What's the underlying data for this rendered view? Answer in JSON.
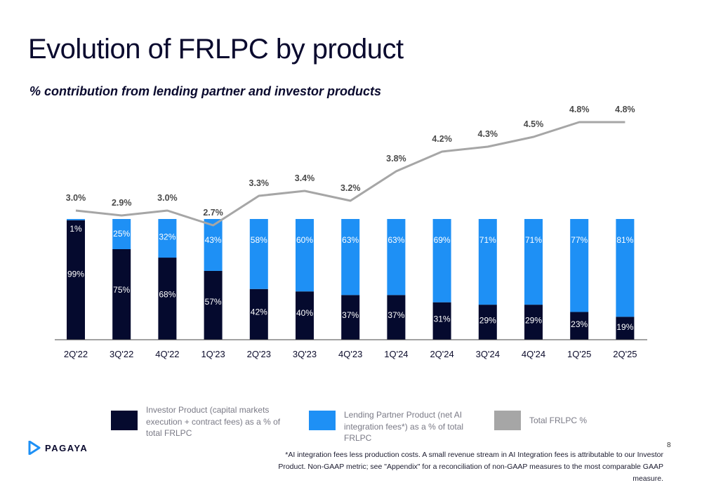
{
  "title": "Evolution of FRLPC by product",
  "subtitle": "% contribution from lending partner and investor products",
  "chart_data": {
    "type": "bar",
    "stacked": true,
    "categories": [
      "2Q'22",
      "3Q'22",
      "4Q'22",
      "1Q'23",
      "2Q'23",
      "3Q'23",
      "4Q'23",
      "1Q'24",
      "2Q'24",
      "3Q'24",
      "4Q'24",
      "1Q'25",
      "2Q'25"
    ],
    "series": [
      {
        "name": "Investor Product (capital markets execution + contract fees) as a % of total FRLPC",
        "color": "#050a2e",
        "values": [
          99,
          75,
          68,
          57,
          42,
          40,
          37,
          37,
          31,
          29,
          29,
          23,
          19
        ],
        "labels": [
          "99%",
          "75%",
          "68%",
          "57%",
          "42%",
          "40%",
          "37%",
          "37%",
          "31%",
          "29%",
          "29%",
          "23%",
          "19%"
        ]
      },
      {
        "name": "Lending Partner Product (net AI integration fees*) as a % of total FRLPC",
        "color": "#1e90f5",
        "values": [
          1,
          25,
          32,
          43,
          58,
          60,
          63,
          63,
          69,
          71,
          71,
          77,
          81
        ],
        "labels": [
          "1%",
          "25%",
          "32%",
          "43%",
          "58%",
          "60%",
          "63%",
          "63%",
          "69%",
          "71%",
          "71%",
          "77%",
          "81%"
        ]
      }
    ],
    "line": {
      "name": "Total FRLPC %",
      "color": "#a6a6a6",
      "values": [
        3.0,
        2.9,
        3.0,
        2.7,
        3.3,
        3.4,
        3.2,
        3.8,
        4.2,
        4.3,
        4.5,
        4.8,
        4.8
      ],
      "labels": [
        "3.0%",
        "2.9%",
        "3.0%",
        "2.7%",
        "3.3%",
        "3.4%",
        "3.2%",
        "3.8%",
        "4.2%",
        "4.3%",
        "4.5%",
        "4.8%",
        "4.8%"
      ]
    },
    "ylim": [
      0,
      100
    ],
    "legend_position": "bottom",
    "grid": false
  },
  "legend": {
    "investor": "Investor Product (capital markets execution + contract fees) as a % of total FRLPC",
    "lending": "Lending Partner Product (net AI integration fees*) as a % of total FRLPC",
    "total": "Total FRLPC %"
  },
  "logo_text": "PAGAYA",
  "page_number": "8",
  "footnote": "*AI integration fees less production costs. A small revenue stream in AI Integration fees is attributable to our Investor Product. Non-GAAP metric; see \"Appendix\" for a reconciliation of non-GAAP measures to the most comparable GAAP measure."
}
